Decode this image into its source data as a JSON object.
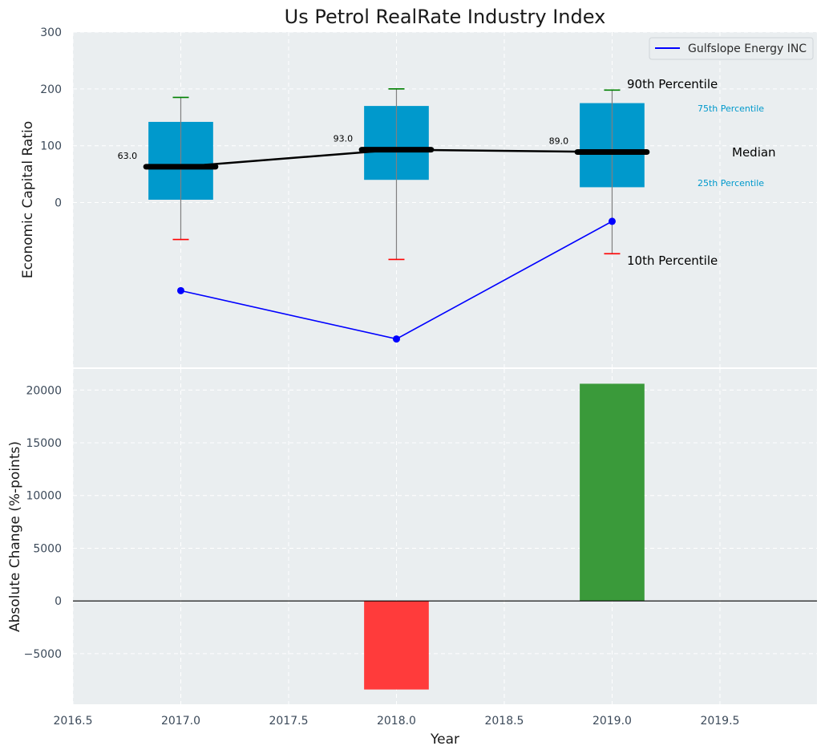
{
  "colors": {
    "panel_bg": "#eaeef0",
    "grid": "#ffffff",
    "box": "#0099cc",
    "whisker": "#808080",
    "cap_top": "#008000",
    "cap_bottom": "#ff0000",
    "median_line": "#000000",
    "company_line": "#0000ff",
    "bar_negative": "#ff3b3b",
    "bar_positive": "#3a9a3a",
    "annotation_small": "#0099cc",
    "zero_line": "#000000"
  },
  "chart_data": [
    {
      "type": "box",
      "title": "Us Petrol RealRate Industry Index",
      "xlabel": "",
      "ylabel": "Economic Capital Ratio",
      "ylim": [
        -290,
        300
      ],
      "yticks": [
        0,
        100,
        200,
        300
      ],
      "grid": true,
      "legend_placement": "top-right",
      "boxes": [
        {
          "x": 2017,
          "p10": -65,
          "p25": 5,
          "median": 63,
          "p75": 142,
          "p90": 185,
          "median_label": "63.0"
        },
        {
          "x": 2018,
          "p10": -100,
          "p25": 40,
          "median": 93,
          "p75": 170,
          "p90": 200,
          "median_label": "93.0"
        },
        {
          "x": 2019,
          "p10": -90,
          "p25": 27,
          "median": 89,
          "p75": 175,
          "p90": 198,
          "median_label": "89.0"
        }
      ],
      "series": [
        {
          "name": "Gulfslope Energy INC",
          "x": [
            2017,
            2018,
            2019
          ],
          "values": [
            -155,
            -240,
            -33
          ]
        }
      ],
      "annotations": {
        "p90": "90th Percentile",
        "p75": "75th Percentile",
        "median": "Median",
        "p25": "25th Percentile",
        "p10": "10th Percentile"
      }
    },
    {
      "type": "bar",
      "xlabel": "Year",
      "ylabel": "Absolute Change (%-points)",
      "x": [
        2018,
        2019
      ],
      "values": [
        -8400,
        20600
      ],
      "xlim": [
        2016.5,
        2019.95
      ],
      "ylim": [
        -9800,
        22000
      ],
      "yticks": [
        -5000,
        0,
        5000,
        10000,
        15000,
        20000
      ],
      "ytick_labels": [
        "−5000",
        "0",
        "5000",
        "10000",
        "15000",
        "20000"
      ],
      "xticks": [
        2016.5,
        2017.0,
        2017.5,
        2018.0,
        2018.5,
        2019.0,
        2019.5
      ],
      "xtick_labels": [
        "2016.5",
        "2017.0",
        "2017.5",
        "2018.0",
        "2018.5",
        "2019.0",
        "2019.5"
      ],
      "grid": true
    }
  ]
}
